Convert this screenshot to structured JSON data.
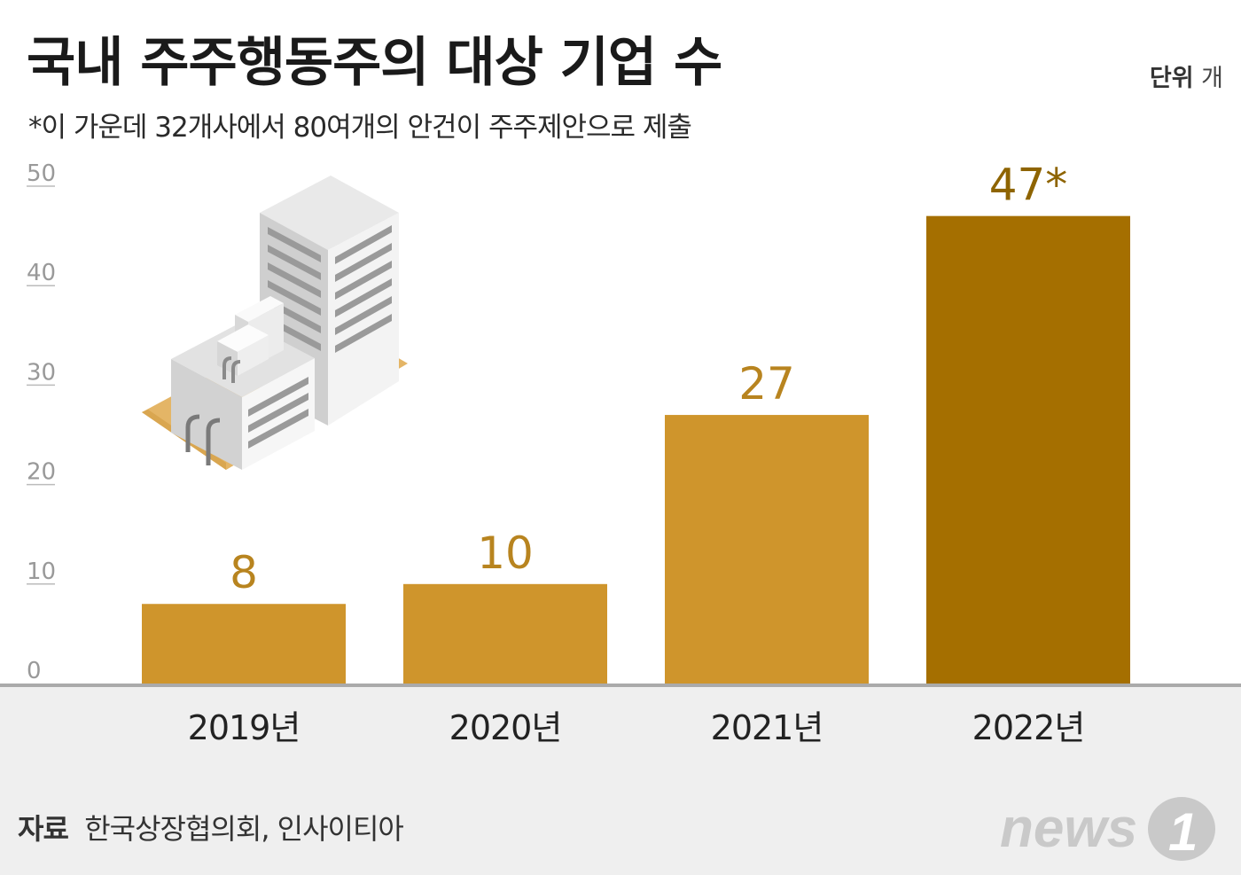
{
  "title": "국내 주주행동주의 대상 기업 수",
  "subtitle": "*이 가운데 32개사에서 80여개의 안건이 주주제안으로 제출",
  "unit": {
    "label": "단위",
    "value": "개"
  },
  "source": {
    "label": "자료",
    "text": "한국상장협의회, 인사이티아"
  },
  "logo": {
    "text": "news",
    "mark": "1"
  },
  "colors": {
    "bar": "#cf952c",
    "bar_highlight": "#a56f00",
    "value_label": "#b8841f",
    "value_label_highlight": "#8e6400",
    "axis": "#aaaaaa",
    "footer_bg": "#efefef"
  },
  "chart_data": {
    "type": "bar",
    "title": "국내 주주행동주의 대상 기업 수",
    "categories": [
      "2019년",
      "2020년",
      "2021년",
      "2022년"
    ],
    "values": [
      8,
      10,
      27,
      47
    ],
    "value_labels": [
      "8",
      "10",
      "27",
      "47*"
    ],
    "highlight_index": 3,
    "ylim": [
      0,
      50
    ],
    "yticks": [
      0,
      10,
      20,
      30,
      40,
      50
    ],
    "xlabel": "",
    "ylabel": "",
    "grid": false,
    "legend": "none"
  }
}
